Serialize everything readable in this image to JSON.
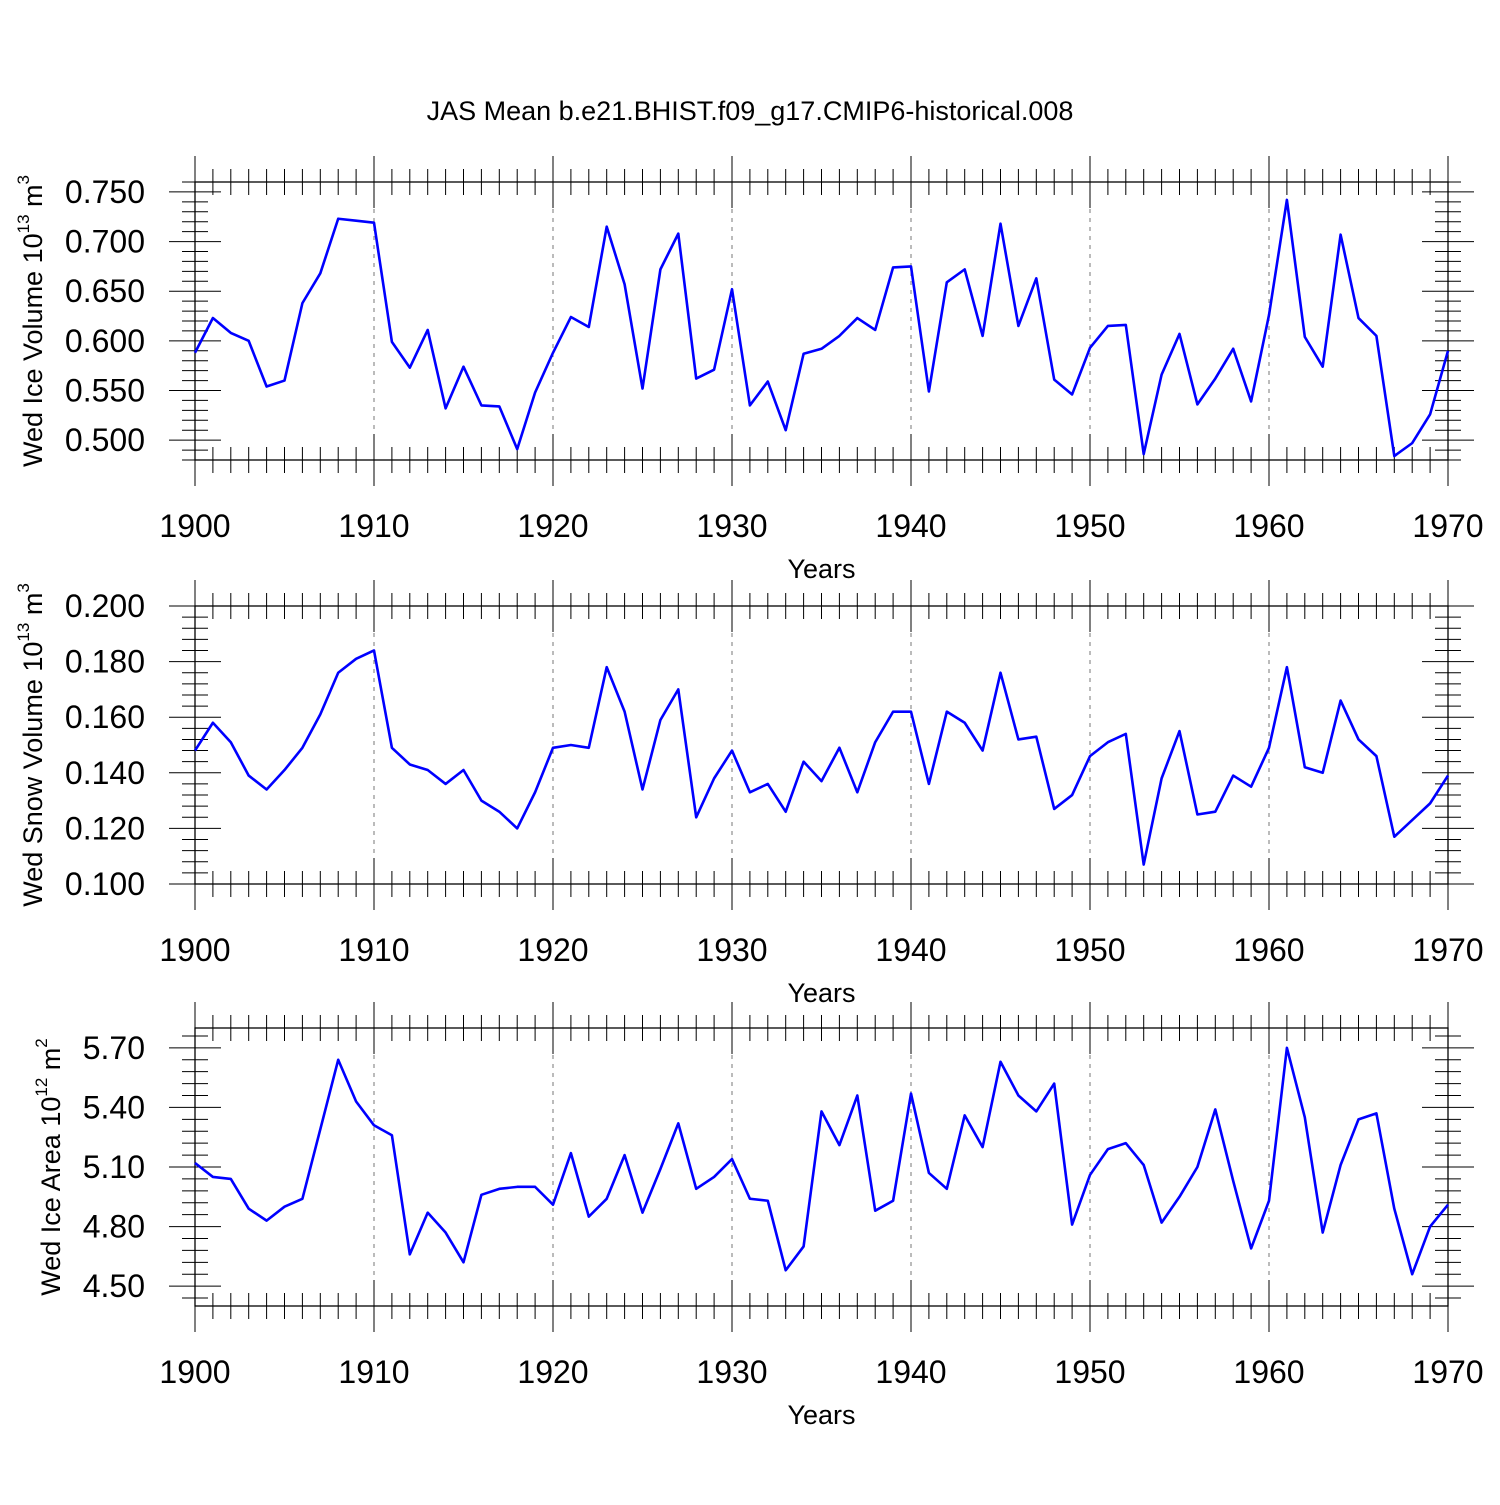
{
  "title": "JAS Mean b.e21.BHIST.f09_g17.CMIP6-historical.008",
  "colors": {
    "line": "#0000ff",
    "axis": "#000000",
    "grid": "#777777"
  },
  "chart_data": [
    {
      "type": "line",
      "title": "JAS Mean b.e21.BHIST.f09_g17.CMIP6-historical.008",
      "ylabel": "Wed Ice Volume",
      "yunit_base": "10",
      "yunit_exp": "13",
      "yunit_tail": "m",
      "yunit_tail_exp": "3",
      "xlabel": "Years",
      "xlim": [
        1900,
        1970
      ],
      "ylim": [
        0.48,
        0.76
      ],
      "x_ticks": [
        "1900",
        "1910",
        "1920",
        "1930",
        "1940",
        "1950",
        "1960",
        "1970"
      ],
      "y_ticks": [
        "0.500",
        "0.550",
        "0.600",
        "0.650",
        "0.700",
        "0.750"
      ],
      "grid": "dashed vertical at decades",
      "series": [
        {
          "name": "Wed Ice Volume",
          "color": "#0000ff",
          "x_start": 1900,
          "x_step": 1,
          "values": [
            0.588,
            0.623,
            0.608,
            0.6,
            0.554,
            0.56,
            0.638,
            0.668,
            0.723,
            0.721,
            0.719,
            0.599,
            0.573,
            0.611,
            0.532,
            0.574,
            0.535,
            0.534,
            0.491,
            0.548,
            0.588,
            0.624,
            0.614,
            0.715,
            0.657,
            0.552,
            0.672,
            0.708,
            0.562,
            0.571,
            0.652,
            0.535,
            0.559,
            0.51,
            0.587,
            0.592,
            0.605,
            0.623,
            0.611,
            0.674,
            0.675,
            0.549,
            0.659,
            0.672,
            0.605,
            0.718,
            0.615,
            0.663,
            0.561,
            0.546,
            0.593,
            0.615,
            0.616,
            0.486,
            0.566,
            0.607,
            0.536,
            0.562,
            0.592,
            0.539,
            0.626,
            0.742,
            0.604,
            0.574,
            0.707,
            0.623,
            0.605,
            0.484,
            0.497,
            0.526,
            0.59
          ]
        }
      ]
    },
    {
      "type": "line",
      "ylabel": "Wed Snow Volume",
      "yunit_base": "10",
      "yunit_exp": "13",
      "yunit_tail": "m",
      "yunit_tail_exp": "3",
      "xlabel": "Years",
      "xlim": [
        1900,
        1970
      ],
      "ylim": [
        0.1,
        0.2
      ],
      "x_ticks": [
        "1900",
        "1910",
        "1920",
        "1930",
        "1940",
        "1950",
        "1960",
        "1970"
      ],
      "y_ticks": [
        "0.100",
        "0.120",
        "0.140",
        "0.160",
        "0.180",
        "0.200"
      ],
      "grid": "dashed vertical at decades",
      "series": [
        {
          "name": "Wed Snow Volume",
          "color": "#0000ff",
          "x_start": 1900,
          "x_step": 1,
          "values": [
            0.148,
            0.158,
            0.151,
            0.139,
            0.134,
            0.141,
            0.149,
            0.161,
            0.176,
            0.181,
            0.184,
            0.149,
            0.143,
            0.141,
            0.136,
            0.141,
            0.13,
            0.126,
            0.12,
            0.133,
            0.149,
            0.15,
            0.149,
            0.178,
            0.162,
            0.134,
            0.159,
            0.17,
            0.124,
            0.138,
            0.148,
            0.133,
            0.136,
            0.126,
            0.144,
            0.137,
            0.149,
            0.133,
            0.151,
            0.162,
            0.162,
            0.136,
            0.162,
            0.158,
            0.148,
            0.176,
            0.152,
            0.153,
            0.127,
            0.132,
            0.146,
            0.151,
            0.154,
            0.107,
            0.138,
            0.155,
            0.125,
            0.126,
            0.139,
            0.135,
            0.149,
            0.178,
            0.142,
            0.14,
            0.166,
            0.152,
            0.146,
            0.117,
            0.123,
            0.129,
            0.139
          ]
        }
      ]
    },
    {
      "type": "line",
      "ylabel": "Wed Ice Area",
      "yunit_base": "10",
      "yunit_exp": "12",
      "yunit_tail": "m",
      "yunit_tail_exp": "2",
      "xlabel": "Years",
      "xlim": [
        1900,
        1970
      ],
      "ylim": [
        4.4,
        5.8
      ],
      "x_ticks": [
        "1900",
        "1910",
        "1920",
        "1930",
        "1940",
        "1950",
        "1960",
        "1970"
      ],
      "y_ticks": [
        "4.50",
        "4.80",
        "5.10",
        "5.40",
        "5.70"
      ],
      "grid": "dashed vertical at decades",
      "series": [
        {
          "name": "Wed Ice Area",
          "color": "#0000ff",
          "x_start": 1900,
          "x_step": 1,
          "values": [
            5.12,
            5.05,
            5.04,
            4.89,
            4.83,
            4.9,
            4.94,
            5.29,
            5.64,
            5.43,
            5.31,
            5.26,
            4.66,
            4.87,
            4.77,
            4.62,
            4.96,
            4.99,
            5.0,
            5.0,
            4.91,
            5.17,
            4.85,
            4.94,
            5.16,
            4.87,
            5.09,
            5.32,
            4.99,
            5.05,
            5.14,
            4.94,
            4.93,
            4.58,
            4.7,
            5.38,
            5.21,
            5.46,
            4.88,
            4.93,
            5.47,
            5.07,
            4.99,
            5.36,
            5.2,
            5.63,
            5.46,
            5.38,
            5.52,
            4.81,
            5.06,
            5.19,
            5.22,
            5.11,
            4.82,
            4.95,
            5.1,
            5.39,
            5.03,
            4.69,
            4.93,
            5.7,
            5.35,
            4.77,
            5.11,
            5.34,
            5.37,
            4.89,
            4.56,
            4.8,
            4.91
          ]
        }
      ]
    }
  ]
}
